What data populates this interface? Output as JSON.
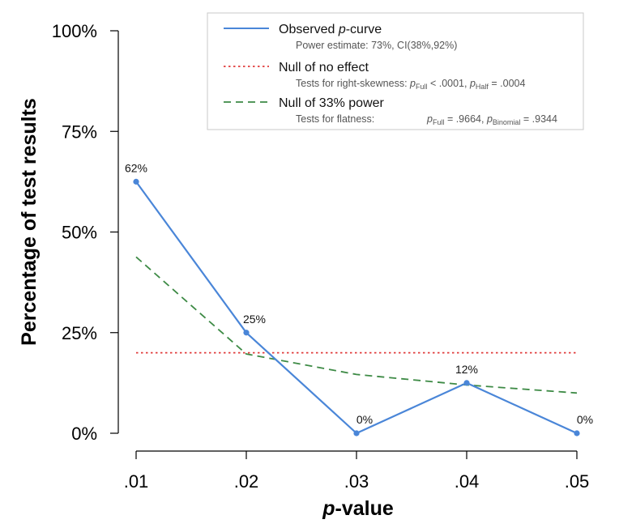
{
  "chart_data": {
    "type": "line",
    "x": [
      0.01,
      0.02,
      0.03,
      0.04,
      0.05
    ],
    "x_tick_labels": [
      ".01",
      ".02",
      ".03",
      ".04",
      ".05"
    ],
    "y_ticks": [
      0,
      25,
      50,
      75,
      100
    ],
    "y_tick_labels": [
      "0%",
      "25%",
      "50%",
      "75%",
      "100%"
    ],
    "ylim": [
      0,
      100
    ],
    "xlim": [
      0.01,
      0.05
    ],
    "grid": false,
    "legend_position": "top-right",
    "xlabel": {
      "italic_part": "p",
      "rest": "-value"
    },
    "ylabel": "Percentage of test results",
    "series": [
      {
        "key": "observed",
        "name_parts": {
          "prefix": "Observed ",
          "italic": "p",
          "suffix": "-curve"
        },
        "values": [
          62.5,
          25,
          0,
          12.5,
          0
        ],
        "data_labels": [
          "62%",
          "25%",
          "0%",
          "12%",
          "0%"
        ],
        "color": "#4a86d8",
        "style": "solid"
      },
      {
        "key": "null_no_effect",
        "name": "Null of no effect",
        "values": [
          20,
          20,
          20,
          20,
          20
        ],
        "color": "#e03a3a",
        "style": "dotted"
      },
      {
        "key": "null_33",
        "name": "Null of 33% power",
        "values": [
          43.8,
          19.7,
          14.6,
          12.0,
          10.0
        ],
        "color": "#3d8a45",
        "style": "dashed"
      }
    ],
    "legend": {
      "observed_sub": "Power estimate: 73%, CI(38%,92%)",
      "no_effect_sub": {
        "prefix": "Tests for right-skewness: ",
        "p1": "p",
        "p1_sub": "Full",
        "p1_val": " < .0001,  ",
        "p2": "p",
        "p2_sub": "Half",
        "p2_val": " = .0004"
      },
      "null33_sub": {
        "prefix": "Tests for flatness:",
        "p1": "p",
        "p1_sub": "Full",
        "p1_val": " = .9664,  ",
        "p2": "p",
        "p2_sub": "Binomial",
        "p2_val": " = .9344"
      }
    }
  }
}
